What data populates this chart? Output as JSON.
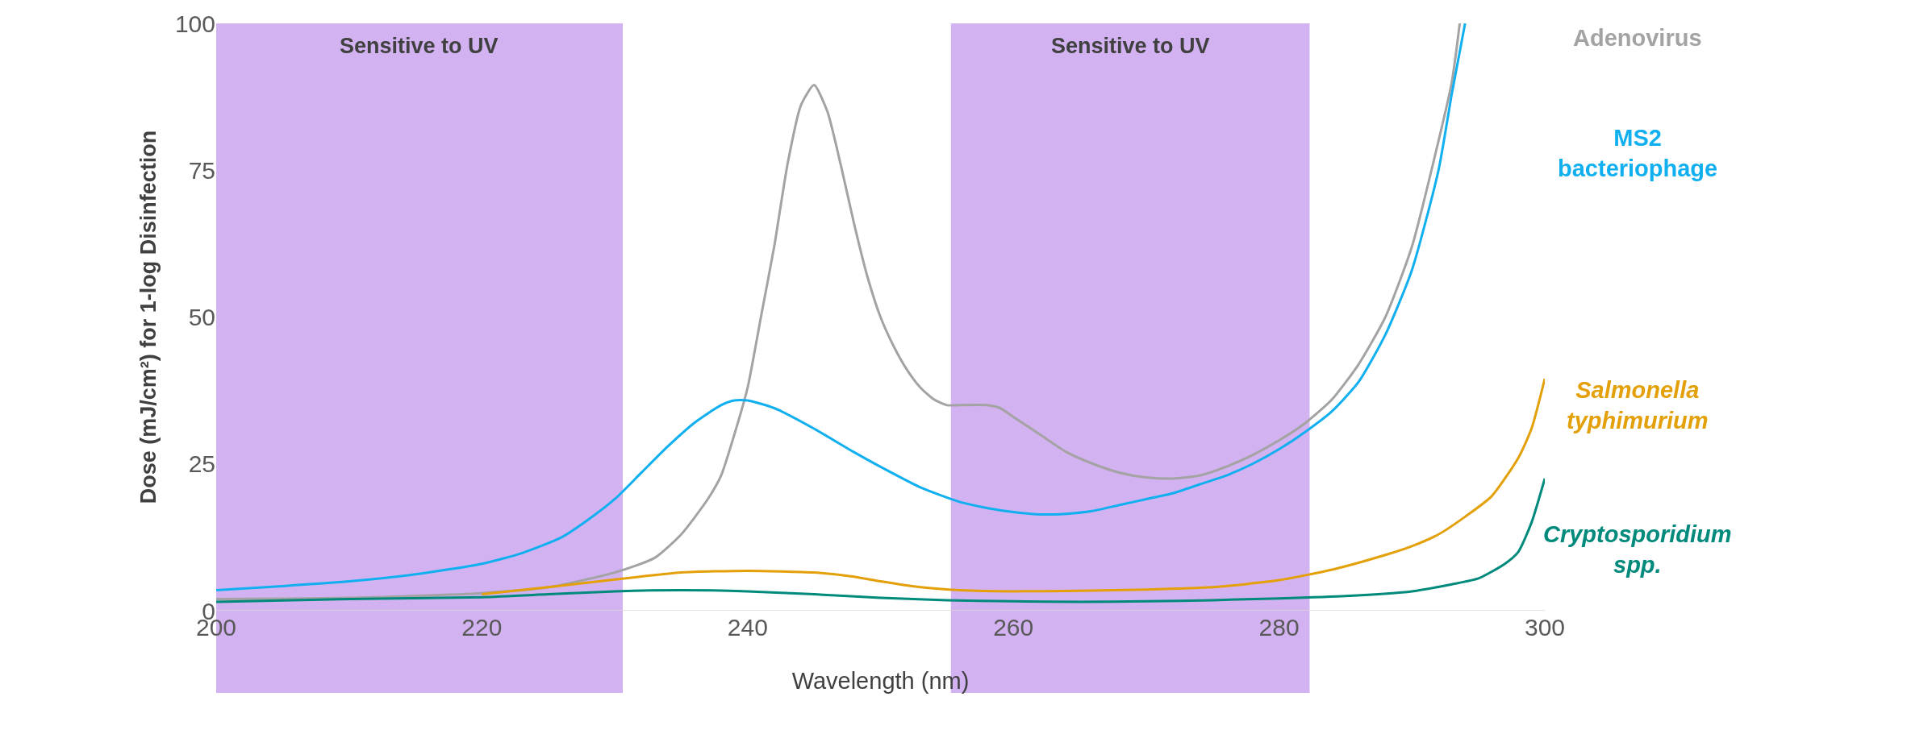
{
  "chart_data": {
    "type": "line",
    "xlabel": "Wavelength (nm)",
    "ylabel": "Dose (mJ/cm²) for 1-log Disinfection",
    "xlim": [
      200,
      300
    ],
    "xticks": [
      200,
      220,
      240,
      260,
      280,
      300
    ],
    "ylim": [
      0,
      100
    ],
    "yticks": [
      0,
      25,
      50,
      75,
      100
    ],
    "grid": false,
    "legend": false,
    "bands": [
      {
        "axis": "x",
        "from": 200,
        "to": 230.6,
        "label": "Sensitive to UV",
        "color": "#d2b2f0"
      },
      {
        "axis": "x",
        "from": 255.3,
        "to": 282.3,
        "label": "Sensitive to UV",
        "color": "#d2b2f0"
      }
    ],
    "series": [
      {
        "name": "Adenovirus",
        "color": "#a3a3a3",
        "x": [
          200,
          210,
          220,
          225,
          230,
          233,
          235,
          237,
          238,
          239,
          240,
          241,
          242,
          243,
          244,
          245,
          246,
          247,
          248,
          249,
          250,
          251,
          252,
          253,
          254,
          255,
          256,
          258,
          259,
          260,
          262,
          264,
          266,
          268,
          270,
          272,
          274,
          276,
          278,
          280,
          282,
          284,
          286,
          288,
          290,
          292,
          293,
          293.6
        ],
        "values": [
          2,
          2.2,
          3,
          4,
          6.5,
          9,
          13,
          19,
          23,
          30,
          38,
          50,
          62,
          76,
          86,
          89.5,
          85,
          76,
          66,
          57,
          50,
          45,
          41,
          38,
          36,
          35,
          35,
          35,
          34.5,
          33,
          30,
          27,
          25,
          23.5,
          22.7,
          22.5,
          23,
          24.5,
          26.5,
          29,
          32,
          36,
          42,
          50,
          62,
          80,
          90,
          100
        ]
      },
      {
        "name": "MS2 bacteriophage",
        "color": "#10b0f0",
        "x": [
          200,
          205,
          210,
          215,
          220,
          223,
          226,
          228,
          230,
          232,
          234,
          236,
          238,
          239,
          240,
          242,
          245,
          248,
          250,
          253,
          256,
          258,
          260,
          262,
          264,
          266,
          268,
          270,
          272,
          274,
          276,
          278,
          280,
          282,
          284,
          286,
          288,
          290,
          292,
          293,
          294
        ],
        "values": [
          3.5,
          4.2,
          5,
          6.2,
          8,
          9.8,
          12.5,
          15.5,
          19,
          23.5,
          28,
          32,
          35,
          35.8,
          35.8,
          34.5,
          31,
          27,
          24.5,
          21,
          18.5,
          17.5,
          16.8,
          16.4,
          16.5,
          17,
          18,
          19,
          20,
          21.5,
          23,
          25,
          27.5,
          30.5,
          34,
          39,
          47,
          58,
          75,
          88,
          100
        ]
      },
      {
        "name": "Salmonella typhimurium",
        "color": "#e3a008",
        "x": [
          220,
          225,
          230,
          235,
          240,
          245,
          248,
          250,
          253,
          256,
          260,
          265,
          270,
          275,
          280,
          284,
          288,
          290,
          292,
          294,
          296,
          298,
          299,
          300
        ],
        "values": [
          2.8,
          4,
          5.3,
          6.5,
          6.8,
          6.5,
          5.8,
          5,
          4,
          3.5,
          3.3,
          3.4,
          3.6,
          4,
          5.2,
          7,
          9.5,
          11,
          13,
          16,
          19.5,
          26,
          31,
          39.5
        ]
      },
      {
        "name": "Cryptosporidium spp.",
        "color": "#008a7c",
        "x": [
          200,
          210,
          220,
          225,
          230,
          235,
          240,
          245,
          250,
          255,
          260,
          265,
          270,
          275,
          280,
          285,
          290,
          293,
          295,
          297,
          298,
          299,
          300
        ],
        "values": [
          1.5,
          2,
          2.3,
          2.8,
          3.3,
          3.5,
          3.3,
          2.8,
          2.2,
          1.8,
          1.6,
          1.5,
          1.6,
          1.8,
          2.1,
          2.5,
          3.3,
          4.5,
          5.5,
          8,
          10,
          15,
          22.5
        ]
      }
    ]
  }
}
